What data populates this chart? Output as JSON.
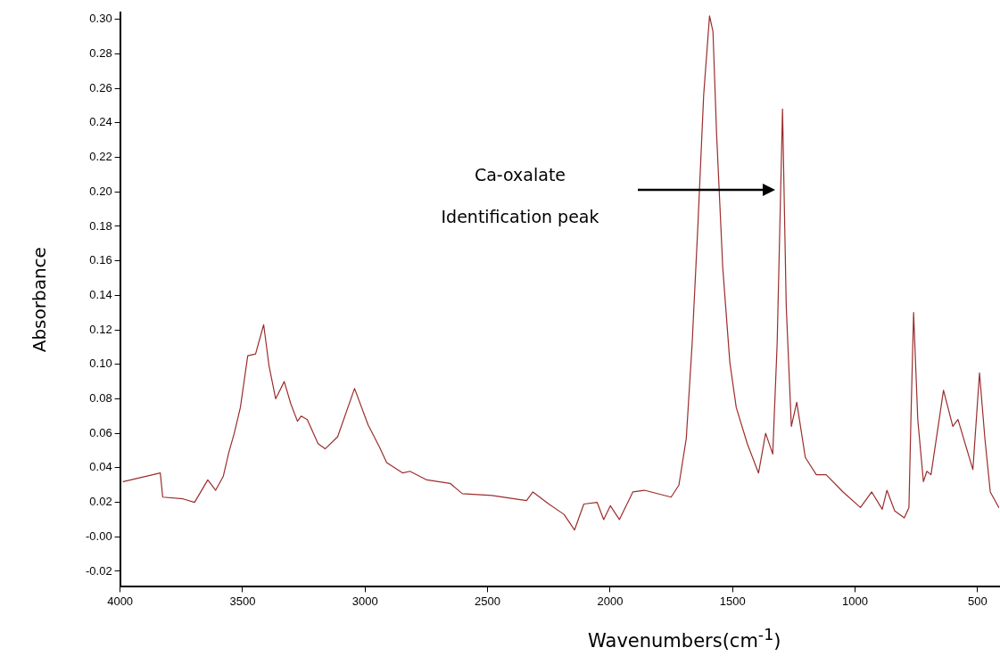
{
  "chart_data": {
    "type": "line",
    "xlabel": "Wavenumbers(cm$^{-1}$)",
    "ylabel": "Absorbance",
    "xlim": [
      4000,
      412
    ],
    "ylim": [
      -0.029,
      0.304
    ],
    "xticks": [
      4000,
      3500,
      3000,
      2500,
      2000,
      1500,
      1000,
      500
    ],
    "yticks": [
      {
        "value": -0.02,
        "label": "-0.02"
      },
      {
        "value": 0,
        "label": "-0.00"
      },
      {
        "value": 0.02,
        "label": "0.02"
      },
      {
        "value": 0.04,
        "label": "0.04"
      },
      {
        "value": 0.06,
        "label": "0.06"
      },
      {
        "value": 0.08,
        "label": "0.08"
      },
      {
        "value": 0.1,
        "label": "0.10"
      },
      {
        "value": 0.12,
        "label": "0.12"
      },
      {
        "value": 0.14,
        "label": "0.14"
      },
      {
        "value": 0.16,
        "label": "0.16"
      },
      {
        "value": 0.18,
        "label": "0.18"
      },
      {
        "value": 0.2,
        "label": "0.20"
      },
      {
        "value": 0.22,
        "label": "0.22"
      },
      {
        "value": 0.24,
        "label": "0.24"
      },
      {
        "value": 0.26,
        "label": "0.26"
      },
      {
        "value": 0.28,
        "label": "0.28"
      },
      {
        "value": 0.3,
        "label": "0.30"
      }
    ],
    "grid": false,
    "legend": false,
    "marker": "none",
    "line_style": "solid",
    "annotations": [
      "Ca-oxalate",
      "Identification peak"
    ],
    "series": [
      {
        "color": "#9b2d2d",
        "x": [
          3987,
          3836,
          3826,
          3743,
          3696,
          3642,
          3610,
          3579,
          3556,
          3534,
          3509,
          3479,
          3447,
          3414,
          3392,
          3365,
          3330,
          3303,
          3276,
          3261,
          3236,
          3192,
          3163,
          3112,
          3043,
          2988,
          2941,
          2912,
          2846,
          2817,
          2748,
          2653,
          2603,
          2483,
          2341,
          2315,
          2250,
          2188,
          2145,
          2107,
          2053,
          2026,
          1999,
          1962,
          1907,
          1860,
          1751,
          1719,
          1689,
          1665,
          1642,
          1618,
          1594,
          1580,
          1565,
          1540,
          1511,
          1485,
          1440,
          1394,
          1365,
          1336,
          1318,
          1296,
          1281,
          1260,
          1238,
          1203,
          1158,
          1118,
          1049,
          978,
          932,
          889,
          870,
          838,
          799,
          780,
          772,
          761,
          744,
          721,
          707,
          690,
          639,
          601,
          580,
          519,
          492,
          470,
          448,
          413
        ],
        "values": [
          0.032,
          0.037,
          0.023,
          0.022,
          0.02,
          0.033,
          0.027,
          0.035,
          0.049,
          0.06,
          0.075,
          0.105,
          0.106,
          0.123,
          0.099,
          0.08,
          0.09,
          0.077,
          0.067,
          0.07,
          0.068,
          0.054,
          0.051,
          0.058,
          0.086,
          0.065,
          0.052,
          0.043,
          0.037,
          0.038,
          0.033,
          0.031,
          0.025,
          0.024,
          0.021,
          0.026,
          0.019,
          0.013,
          0.004,
          0.019,
          0.02,
          0.01,
          0.018,
          0.01,
          0.026,
          0.027,
          0.023,
          0.03,
          0.057,
          0.112,
          0.179,
          0.256,
          0.302,
          0.293,
          0.233,
          0.156,
          0.101,
          0.075,
          0.054,
          0.037,
          0.06,
          0.048,
          0.112,
          0.248,
          0.134,
          0.064,
          0.078,
          0.046,
          0.036,
          0.036,
          0.026,
          0.017,
          0.026,
          0.016,
          0.027,
          0.015,
          0.011,
          0.017,
          0.068,
          0.13,
          0.068,
          0.032,
          0.038,
          0.036,
          0.085,
          0.064,
          0.068,
          0.039,
          0.095,
          0.057,
          0.026,
          0.017
        ]
      }
    ]
  }
}
